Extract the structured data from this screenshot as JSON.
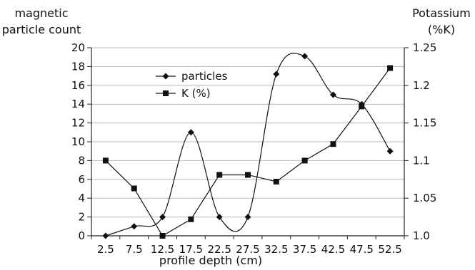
{
  "chart_data": {
    "type": "line",
    "xlabel": "profile depth (cm)",
    "left_axis": {
      "label_lines": [
        "magnetic",
        "particle count"
      ],
      "ylim": [
        0,
        20
      ],
      "ticks": [
        0,
        2,
        4,
        6,
        8,
        10,
        12,
        14,
        16,
        18,
        20
      ]
    },
    "right_axis": {
      "label_lines": [
        "Potassium",
        "(%K)"
      ],
      "ylim": [
        1.0,
        1.25
      ],
      "ticks": [
        1.0,
        1.05,
        1.1,
        1.15,
        1.2,
        1.25
      ],
      "tick_labels": [
        "1.0",
        "1.05",
        "1.1",
        "1.15",
        "1.2",
        "1.25"
      ]
    },
    "categories": [
      "2.5",
      "7.5",
      "12.5",
      "17.5",
      "22.5",
      "27.5",
      "32.5",
      "37.5",
      "42.5",
      "47.5",
      "52.5"
    ],
    "series": [
      {
        "name": "particles",
        "axis": "left",
        "marker": "diamond",
        "smooth": true,
        "values": [
          0,
          1,
          2,
          11,
          2,
          2,
          17.2,
          19.1,
          15,
          14,
          9
        ]
      },
      {
        "name": "K (%)",
        "axis": "right",
        "marker": "square",
        "smooth": false,
        "values": [
          1.1,
          1.063,
          1.0,
          1.022,
          1.081,
          1.081,
          1.072,
          1.1,
          1.122,
          1.172,
          1.223
        ]
      }
    ],
    "grid": true,
    "legend": {
      "placement": "top-left"
    },
    "colors": {
      "line": "#111111",
      "grid": "#b8b8b8",
      "axis": "#222222"
    }
  }
}
